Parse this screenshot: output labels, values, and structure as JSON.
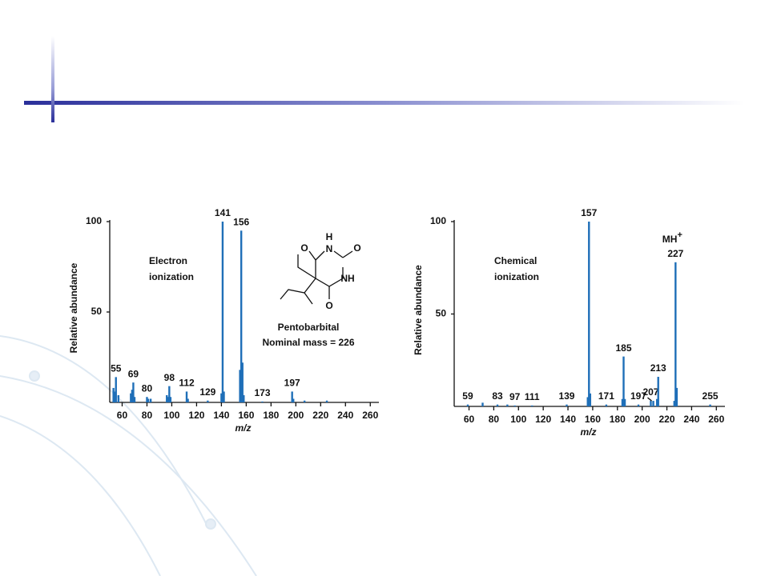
{
  "chart_data": [
    {
      "type": "bar",
      "ylabel": "Relative abundance",
      "xlabel": "m/z",
      "annotation": [
        "Electron",
        "ionization"
      ],
      "compound": "Pentobarbital",
      "mass_note": "Nominal mass = 226",
      "structure_labels": [
        "O",
        "H",
        "N",
        "O",
        "NH",
        "O"
      ],
      "color": "#1f6fb8",
      "x": [
        55,
        69,
        80,
        98,
        112,
        129,
        141,
        156,
        173,
        197
      ],
      "values": [
        14,
        11,
        3,
        9,
        6,
        1,
        100,
        95,
        0.5,
        6
      ],
      "minor_x": [
        53,
        54,
        57,
        67,
        68,
        70,
        81,
        83,
        96,
        97,
        99,
        113,
        140,
        142,
        155,
        157,
        158,
        198,
        207,
        225
      ],
      "minor_values": [
        8,
        6,
        4,
        5,
        7,
        3,
        2,
        2,
        4,
        3,
        3,
        2,
        5,
        6,
        18,
        22,
        4,
        2,
        1,
        1
      ],
      "xlim": [
        50,
        265
      ],
      "ylim": [
        0,
        100
      ],
      "xticks": [
        60,
        80,
        100,
        120,
        140,
        160,
        180,
        200,
        220,
        240,
        260
      ],
      "yticks": [
        50,
        100
      ]
    },
    {
      "type": "bar",
      "ylabel": "Relative abundance",
      "xlabel": "m/z",
      "annotation": [
        "Chemical",
        "ionization"
      ],
      "ion_label": "MH",
      "ion_charge": "+",
      "color": "#1f6fb8",
      "x": [
        59,
        83,
        97,
        111,
        139,
        157,
        171,
        185,
        197,
        207,
        213,
        227,
        255
      ],
      "values": [
        1,
        1,
        0.5,
        0.5,
        1,
        100,
        1,
        27,
        1,
        3,
        16,
        78,
        1
      ],
      "minor_x": [
        71,
        91,
        156,
        158,
        184,
        186,
        209,
        212,
        226,
        228
      ],
      "minor_values": [
        2,
        1,
        5,
        7,
        4,
        4,
        3,
        4,
        3,
        10
      ],
      "xlim": [
        48,
        265
      ],
      "ylim": [
        0,
        100
      ],
      "xticks": [
        60,
        80,
        100,
        120,
        140,
        160,
        180,
        200,
        220,
        240,
        260
      ],
      "yticks": [
        50,
        100
      ]
    }
  ]
}
